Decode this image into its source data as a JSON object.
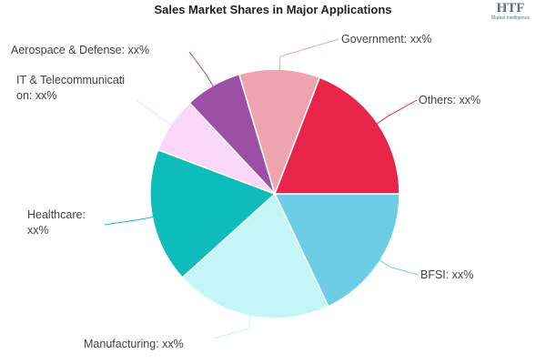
{
  "chart_data": {
    "type": "pie",
    "title": "Sales Market Shares in Major Applications",
    "logo": {
      "text": "HTF",
      "subtitle": "Market Intelligence"
    },
    "categories": [
      "BFSI: xx%",
      "Manufacturing: xx%",
      "Healthcare: xx%",
      "IT & Telecommunication: xx%",
      "Aerospace & Defense: xx%",
      "Government: xx%",
      "Others: xx%"
    ],
    "values": [
      18,
      20.4,
      17.5,
      7.3,
      7.4,
      10.5,
      19.2
    ],
    "colors": [
      "#6dcde6",
      "#c4f5f7",
      "#0ebcbc",
      "#fbd7fa",
      "#9b50a5",
      "#eea4ae",
      "#e8244b"
    ]
  }
}
